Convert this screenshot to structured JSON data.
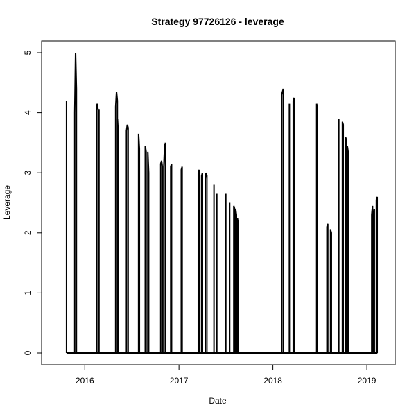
{
  "chart_data": {
    "type": "line",
    "title": "Strategy 97726126 - leverage",
    "xlabel": "Date",
    "ylabel": "Leverage",
    "xlim": [
      "2015-09-01",
      "2019-03-01"
    ],
    "ylim": [
      0,
      5
    ],
    "x_ticks": [
      {
        "date": "2016-01-01",
        "label": "2016"
      },
      {
        "date": "2017-01-01",
        "label": "2017"
      },
      {
        "date": "2018-01-01",
        "label": "2018"
      },
      {
        "date": "2019-01-01",
        "label": "2019"
      }
    ],
    "y_ticks": [
      {
        "value": 0,
        "label": "0"
      },
      {
        "value": 1,
        "label": "1"
      },
      {
        "value": 2,
        "label": "2"
      },
      {
        "value": 3,
        "label": "3"
      },
      {
        "value": 4,
        "label": "4"
      },
      {
        "value": 5,
        "label": "5"
      }
    ],
    "grid": false,
    "legend": "none",
    "line_color": "#000000",
    "spikes": [
      {
        "date": "2015-10-22",
        "values": [
          4.2
        ]
      },
      {
        "date": "2015-11-23",
        "values": [
          4.0,
          5.0,
          4.4
        ]
      },
      {
        "date": "2016-02-15",
        "values": [
          4.05,
          4.15,
          4.05
        ]
      },
      {
        "date": "2016-02-22",
        "values": [
          4.05,
          4.05
        ]
      },
      {
        "date": "2016-04-30",
        "values": [
          4.1,
          4.35,
          4.2
        ]
      },
      {
        "date": "2016-05-07",
        "values": [
          3.9,
          3.65
        ]
      },
      {
        "date": "2016-06-11",
        "values": [
          3.7,
          3.8,
          3.75
        ]
      },
      {
        "date": "2016-07-28",
        "values": [
          3.65,
          3.4
        ]
      },
      {
        "date": "2016-08-23",
        "values": [
          3.45,
          3.35
        ]
      },
      {
        "date": "2016-09-02",
        "values": [
          3.35,
          3.0
        ]
      },
      {
        "date": "2016-10-22",
        "values": [
          3.15,
          3.2,
          3.1
        ]
      },
      {
        "date": "2016-11-03",
        "values": [
          3.1,
          3.45,
          3.5
        ]
      },
      {
        "date": "2016-11-30",
        "values": [
          3.1,
          3.15
        ]
      },
      {
        "date": "2017-01-10",
        "values": [
          3.05,
          3.1
        ]
      },
      {
        "date": "2017-03-17",
        "values": [
          3.0,
          3.05
        ]
      },
      {
        "date": "2017-03-30",
        "values": [
          2.95,
          3.0
        ]
      },
      {
        "date": "2017-04-13",
        "values": [
          2.9,
          3.0,
          2.95
        ]
      },
      {
        "date": "2017-05-17",
        "values": [
          2.8
        ]
      },
      {
        "date": "2017-05-28",
        "values": [
          2.65
        ]
      },
      {
        "date": "2017-07-02",
        "values": [
          2.65
        ]
      },
      {
        "date": "2017-07-17",
        "values": [
          2.5
        ]
      },
      {
        "date": "2017-08-02",
        "values": [
          2.45,
          2.4
        ]
      },
      {
        "date": "2017-08-09",
        "values": [
          2.4,
          2.3
        ]
      },
      {
        "date": "2017-08-16",
        "values": [
          2.25,
          2.15
        ]
      },
      {
        "date": "2018-02-04",
        "values": [
          4.3,
          4.35,
          4.4
        ]
      },
      {
        "date": "2018-03-06",
        "values": [
          4.15
        ]
      },
      {
        "date": "2018-03-21",
        "values": [
          4.2,
          4.25
        ]
      },
      {
        "date": "2018-06-20",
        "values": [
          4.15,
          4.05
        ]
      },
      {
        "date": "2018-07-30",
        "values": [
          2.1,
          2.15
        ]
      },
      {
        "date": "2018-08-13",
        "values": [
          2.05,
          2.0
        ]
      },
      {
        "date": "2018-09-14",
        "values": [
          3.9
        ]
      },
      {
        "date": "2018-09-28",
        "values": [
          3.85,
          3.8
        ]
      },
      {
        "date": "2018-10-10",
        "values": [
          3.6,
          3.55
        ]
      },
      {
        "date": "2018-10-17",
        "values": [
          3.45,
          3.35
        ]
      },
      {
        "date": "2019-01-20",
        "values": [
          2.3,
          2.45
        ]
      },
      {
        "date": "2019-01-27",
        "values": [
          2.35,
          2.4
        ]
      },
      {
        "date": "2019-02-07",
        "values": [
          2.55,
          2.6
        ]
      }
    ]
  }
}
